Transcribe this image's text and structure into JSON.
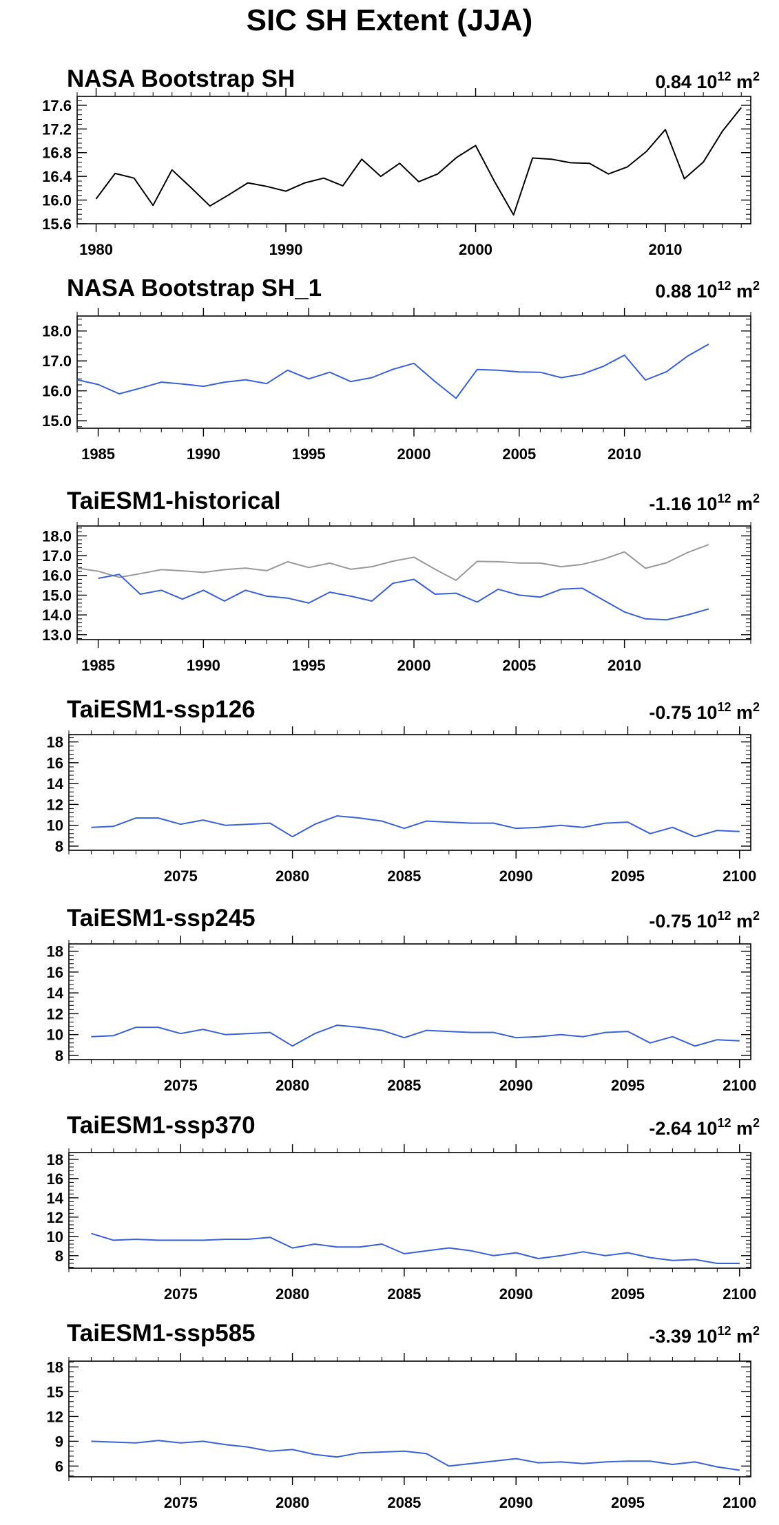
{
  "title": "SIC SH Extent (JJA)",
  "colors": {
    "observed": "#000000",
    "model": "#3a5fd9",
    "reference": "#999999"
  },
  "chart_data": [
    {
      "type": "line",
      "title": "NASA Bootstrap SH",
      "trend": {
        "value": "0.84",
        "unit": "10",
        "exp": "12",
        "suffix": "m",
        "sup": "2"
      },
      "xlim": [
        1979,
        2014.5
      ],
      "ylim": [
        15.6,
        17.75
      ],
      "yticks": [
        15.6,
        16.0,
        16.4,
        16.8,
        17.2,
        17.6
      ],
      "ytick_labels": [
        "15.6",
        "16.0",
        "16.4",
        "16.8",
        "17.2",
        "17.6"
      ],
      "xticks": [
        1980,
        1990,
        2000,
        2010
      ],
      "xtick_labels": [
        "1980",
        "1990",
        "2000",
        "2010"
      ],
      "series": [
        {
          "color": "#000000",
          "x": [
            1980,
            1981,
            1982,
            1983,
            1984,
            1985,
            1986,
            1987,
            1988,
            1989,
            1990,
            1991,
            1992,
            1993,
            1994,
            1995,
            1996,
            1997,
            1998,
            1999,
            2000,
            2001,
            2002,
            2003,
            2004,
            2005,
            2006,
            2007,
            2008,
            2009,
            2010,
            2011,
            2012,
            2013,
            2014
          ],
          "y": [
            16.02,
            16.45,
            16.37,
            15.91,
            16.51,
            16.21,
            15.9,
            16.09,
            16.29,
            16.23,
            16.15,
            16.29,
            16.37,
            16.24,
            16.69,
            16.4,
            16.62,
            16.31,
            16.44,
            16.72,
            16.92,
            16.31,
            15.75,
            16.71,
            16.69,
            16.63,
            16.62,
            16.44,
            16.56,
            16.82,
            17.19,
            16.36,
            16.64,
            17.16,
            17.56
          ]
        }
      ]
    },
    {
      "type": "line",
      "title": "NASA Bootstrap SH_1",
      "trend": {
        "value": "0.88",
        "unit": "10",
        "exp": "12",
        "suffix": "m",
        "sup": "2"
      },
      "xlim": [
        1984,
        2016
      ],
      "ylim": [
        14.75,
        18.5
      ],
      "yticks": [
        15.0,
        16.0,
        17.0,
        18.0
      ],
      "ytick_labels": [
        "15.0",
        "16.0",
        "17.0",
        "18.0"
      ],
      "xticks": [
        1985,
        1990,
        1995,
        2000,
        2005,
        2010
      ],
      "xtick_labels": [
        "1985",
        "1990",
        "1995",
        "2000",
        "2005",
        "2010"
      ],
      "series": [
        {
          "color": "#3a5fd9",
          "x": [
            1984,
            1985,
            1986,
            1987,
            1988,
            1989,
            1990,
            1991,
            1992,
            1993,
            1994,
            1995,
            1996,
            1997,
            1998,
            1999,
            2000,
            2001,
            2002,
            2003,
            2004,
            2005,
            2006,
            2007,
            2008,
            2009,
            2010,
            2011,
            2012,
            2013,
            2014
          ],
          "y": [
            16.37,
            16.21,
            15.9,
            16.09,
            16.29,
            16.23,
            16.15,
            16.29,
            16.37,
            16.24,
            16.69,
            16.4,
            16.62,
            16.31,
            16.44,
            16.72,
            16.92,
            16.31,
            15.75,
            16.71,
            16.69,
            16.63,
            16.62,
            16.44,
            16.56,
            16.82,
            17.19,
            16.36,
            16.64,
            17.16,
            17.56
          ]
        }
      ]
    },
    {
      "type": "line",
      "title": "TaiESM1-historical",
      "trend": {
        "value": "-1.16",
        "unit": "10",
        "exp": "12",
        "suffix": "m",
        "sup": "2"
      },
      "xlim": [
        1984,
        2016
      ],
      "ylim": [
        12.75,
        18.5
      ],
      "yticks": [
        13.0,
        14.0,
        15.0,
        16.0,
        17.0,
        18.0
      ],
      "ytick_labels": [
        "13.0",
        "14.0",
        "15.0",
        "16.0",
        "17.0",
        "18.0"
      ],
      "xticks": [
        1985,
        1990,
        1995,
        2000,
        2005,
        2010
      ],
      "xtick_labels": [
        "1985",
        "1990",
        "1995",
        "2000",
        "2005",
        "2010"
      ],
      "series": [
        {
          "color": "#999999",
          "x": [
            1984,
            1985,
            1986,
            1987,
            1988,
            1989,
            1990,
            1991,
            1992,
            1993,
            1994,
            1995,
            1996,
            1997,
            1998,
            1999,
            2000,
            2001,
            2002,
            2003,
            2004,
            2005,
            2006,
            2007,
            2008,
            2009,
            2010,
            2011,
            2012,
            2013,
            2014
          ],
          "y": [
            16.37,
            16.21,
            15.9,
            16.09,
            16.29,
            16.23,
            16.15,
            16.29,
            16.37,
            16.24,
            16.69,
            16.4,
            16.62,
            16.31,
            16.44,
            16.72,
            16.92,
            16.31,
            15.75,
            16.71,
            16.69,
            16.63,
            16.62,
            16.44,
            16.56,
            16.82,
            17.19,
            16.36,
            16.64,
            17.16,
            17.56
          ]
        },
        {
          "color": "#3a5fd9",
          "x": [
            1985,
            1986,
            1987,
            1988,
            1989,
            1990,
            1991,
            1992,
            1993,
            1994,
            1995,
            1996,
            1997,
            1998,
            1999,
            2000,
            2001,
            2002,
            2003,
            2004,
            2005,
            2006,
            2007,
            2008,
            2009,
            2010,
            2011,
            2012,
            2013,
            2014
          ],
          "y": [
            15.85,
            16.05,
            15.05,
            15.25,
            14.8,
            15.25,
            14.7,
            15.25,
            14.95,
            14.85,
            14.6,
            15.15,
            14.95,
            14.7,
            15.6,
            15.8,
            15.05,
            15.1,
            14.65,
            15.3,
            15.0,
            14.9,
            15.3,
            15.35,
            14.75,
            14.15,
            13.8,
            13.75,
            14.0,
            14.3
          ]
        }
      ]
    },
    {
      "type": "line",
      "title": "TaiESM1-ssp126",
      "trend": {
        "value": "-0.75",
        "unit": "10",
        "exp": "12",
        "suffix": "m",
        "sup": "2"
      },
      "xlim": [
        2070,
        2100.5
      ],
      "ylim": [
        7.6,
        18.7
      ],
      "yticks": [
        8,
        10,
        12,
        14,
        16,
        18
      ],
      "ytick_labels": [
        "8",
        "10",
        "12",
        "14",
        "16",
        "18"
      ],
      "xticks": [
        2075,
        2080,
        2085,
        2090,
        2095,
        2100
      ],
      "xtick_labels": [
        "2075",
        "2080",
        "2085",
        "2090",
        "2095",
        "2100"
      ],
      "series": [
        {
          "color": "#3a5fd9",
          "x": [
            2071,
            2072,
            2073,
            2074,
            2075,
            2076,
            2077,
            2078,
            2079,
            2080,
            2081,
            2082,
            2083,
            2084,
            2085,
            2086,
            2087,
            2088,
            2089,
            2090,
            2091,
            2092,
            2093,
            2094,
            2095,
            2096,
            2097,
            2098,
            2099,
            2100
          ],
          "y": [
            9.8,
            9.9,
            10.7,
            10.7,
            10.1,
            10.5,
            10.0,
            10.1,
            10.2,
            8.9,
            10.1,
            10.9,
            10.7,
            10.4,
            9.7,
            10.4,
            10.3,
            10.2,
            10.2,
            9.7,
            9.8,
            10.0,
            9.8,
            10.2,
            10.3,
            9.2,
            9.8,
            8.9,
            9.5,
            9.4
          ]
        }
      ]
    },
    {
      "type": "line",
      "title": "TaiESM1-ssp245",
      "trend": {
        "value": "-0.75",
        "unit": "10",
        "exp": "12",
        "suffix": "m",
        "sup": "2"
      },
      "xlim": [
        2070,
        2100.5
      ],
      "ylim": [
        7.6,
        18.7
      ],
      "yticks": [
        8,
        10,
        12,
        14,
        16,
        18
      ],
      "ytick_labels": [
        "8",
        "10",
        "12",
        "14",
        "16",
        "18"
      ],
      "xticks": [
        2075,
        2080,
        2085,
        2090,
        2095,
        2100
      ],
      "xtick_labels": [
        "2075",
        "2080",
        "2085",
        "2090",
        "2095",
        "2100"
      ],
      "series": [
        {
          "color": "#3a5fd9",
          "x": [
            2071,
            2072,
            2073,
            2074,
            2075,
            2076,
            2077,
            2078,
            2079,
            2080,
            2081,
            2082,
            2083,
            2084,
            2085,
            2086,
            2087,
            2088,
            2089,
            2090,
            2091,
            2092,
            2093,
            2094,
            2095,
            2096,
            2097,
            2098,
            2099,
            2100
          ],
          "y": [
            9.8,
            9.9,
            10.7,
            10.7,
            10.1,
            10.5,
            10.0,
            10.1,
            10.2,
            8.9,
            10.1,
            10.9,
            10.7,
            10.4,
            9.7,
            10.4,
            10.3,
            10.2,
            10.2,
            9.7,
            9.8,
            10.0,
            9.8,
            10.2,
            10.3,
            9.2,
            9.8,
            8.9,
            9.5,
            9.4
          ]
        }
      ]
    },
    {
      "type": "line",
      "title": "TaiESM1-ssp370",
      "trend": {
        "value": "-2.64",
        "unit": "10",
        "exp": "12",
        "suffix": "m",
        "sup": "2"
      },
      "xlim": [
        2070,
        2100.5
      ],
      "ylim": [
        6.7,
        18.7
      ],
      "yticks": [
        8,
        10,
        12,
        14,
        16,
        18
      ],
      "ytick_labels": [
        "8",
        "10",
        "12",
        "14",
        "16",
        "18"
      ],
      "xticks": [
        2075,
        2080,
        2085,
        2090,
        2095,
        2100
      ],
      "xtick_labels": [
        "2075",
        "2080",
        "2085",
        "2090",
        "2095",
        "2100"
      ],
      "series": [
        {
          "color": "#3a5fd9",
          "x": [
            2071,
            2072,
            2073,
            2074,
            2075,
            2076,
            2077,
            2078,
            2079,
            2080,
            2081,
            2082,
            2083,
            2084,
            2085,
            2086,
            2087,
            2088,
            2089,
            2090,
            2091,
            2092,
            2093,
            2094,
            2095,
            2096,
            2097,
            2098,
            2099,
            2100
          ],
          "y": [
            10.3,
            9.6,
            9.7,
            9.6,
            9.6,
            9.6,
            9.7,
            9.7,
            9.9,
            8.8,
            9.2,
            8.9,
            8.9,
            9.2,
            8.2,
            8.5,
            8.8,
            8.5,
            8.0,
            8.3,
            7.7,
            8.0,
            8.4,
            8.0,
            8.3,
            7.8,
            7.5,
            7.6,
            7.2,
            7.2
          ]
        }
      ]
    },
    {
      "type": "line",
      "title": "TaiESM1-ssp585",
      "trend": {
        "value": "-3.39",
        "unit": "10",
        "exp": "12",
        "suffix": "m",
        "sup": "2"
      },
      "xlim": [
        2070,
        2100.5
      ],
      "ylim": [
        4.7,
        18.7
      ],
      "yticks": [
        6,
        9,
        12,
        15,
        18
      ],
      "ytick_labels": [
        "6",
        "9",
        "12",
        "15",
        "18"
      ],
      "xticks": [
        2075,
        2080,
        2085,
        2090,
        2095,
        2100
      ],
      "xtick_labels": [
        "2075",
        "2080",
        "2085",
        "2090",
        "2095",
        "2100"
      ],
      "series": [
        {
          "color": "#3a5fd9",
          "x": [
            2071,
            2072,
            2073,
            2074,
            2075,
            2076,
            2077,
            2078,
            2079,
            2080,
            2081,
            2082,
            2083,
            2084,
            2085,
            2086,
            2087,
            2088,
            2089,
            2090,
            2091,
            2092,
            2093,
            2094,
            2095,
            2096,
            2097,
            2098,
            2099,
            2100
          ],
          "y": [
            9.0,
            8.9,
            8.8,
            9.1,
            8.8,
            9.0,
            8.6,
            8.3,
            7.8,
            8.0,
            7.4,
            7.1,
            7.6,
            7.7,
            7.8,
            7.5,
            6.0,
            6.3,
            6.6,
            6.9,
            6.4,
            6.5,
            6.3,
            6.5,
            6.6,
            6.6,
            6.2,
            6.5,
            5.9,
            5.5
          ]
        }
      ]
    }
  ]
}
